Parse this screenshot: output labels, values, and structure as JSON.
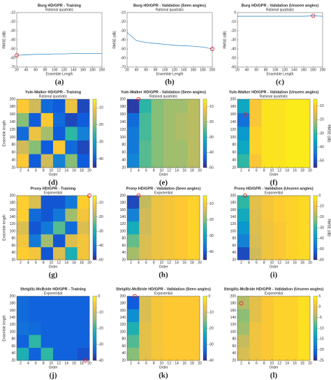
{
  "chart_data": [
    {
      "type": "line",
      "label": "(a)",
      "title": "Burg HD/GPR - Training",
      "subtitle": "Rational quadratic",
      "x_label": "Ensemble Length",
      "y_label": "RMSE (dB)",
      "color": "#3a8fd0",
      "x": [
        20,
        40,
        60,
        80,
        100,
        120,
        140,
        160,
        180,
        200
      ],
      "values": [
        -57,
        -56.5,
        -56,
        -56,
        -55.5,
        -55.5,
        -55,
        -55,
        -55,
        -55
      ],
      "xlim": [
        20,
        200
      ],
      "ylim": [
        -70,
        -10
      ],
      "xticks": [
        20,
        40,
        60,
        80,
        100,
        120,
        140,
        160,
        180,
        200
      ],
      "yticks": [
        -10,
        -20,
        -30,
        -40,
        -50,
        -60,
        -70
      ],
      "optimum": {
        "x": 20,
        "y": -57
      }
    },
    {
      "type": "line",
      "label": "(b)",
      "title": "Burg HD/GPR - Validation (Seen angles)",
      "subtitle": "Rational quadratic",
      "x_label": "Ensemble Length",
      "y_label": "RMSE (dB)",
      "color": "#3a8fd0",
      "x": [
        20,
        40,
        60,
        80,
        100,
        120,
        140,
        160,
        180,
        200
      ],
      "values": [
        -32,
        -41,
        -43,
        -44,
        -45,
        -46,
        -46.5,
        -47,
        -48,
        -50
      ],
      "xlim": [
        20,
        200
      ],
      "ylim": [
        -70,
        -10
      ],
      "xticks": [
        20,
        40,
        60,
        80,
        100,
        120,
        140,
        160,
        180,
        200
      ],
      "yticks": [
        -10,
        -20,
        -30,
        -40,
        -50,
        -60,
        -70
      ],
      "optimum": {
        "x": 200,
        "y": -50
      }
    },
    {
      "type": "line",
      "label": "(c)",
      "title": "Burg HD/GPR - Validation (Unseen angles)",
      "subtitle": "Rational quadratic",
      "x_label": "Ensemble Length",
      "y_label": "RMSE (dB)",
      "color": "#3a8fd0",
      "x": [
        20,
        40,
        60,
        80,
        100,
        120,
        140,
        160,
        180,
        200
      ],
      "values": [
        -4,
        -4,
        -4,
        -4,
        -4,
        -4,
        -4,
        -4,
        -3.5,
        -4
      ],
      "xlim": [
        20,
        200
      ],
      "ylim": [
        -60,
        0
      ],
      "xticks": [
        20,
        40,
        60,
        80,
        100,
        120,
        140,
        160,
        180,
        200
      ],
      "yticks": [
        0,
        -10,
        -20,
        -30,
        -40,
        -50,
        -60
      ],
      "optimum": {
        "x": 180,
        "y": -3.5
      }
    },
    {
      "type": "heatmap",
      "label": "(d)",
      "title": "Yule-Walker HD/GPR - Training",
      "subtitle": "Rational quadratic",
      "x_label": "Order",
      "y_label": "Ensemble length",
      "xlim": [
        1,
        20
      ],
      "ylim": [
        20,
        200
      ],
      "xticks": [
        2,
        4,
        6,
        8,
        10,
        12,
        14,
        16,
        18,
        20
      ],
      "yticks": [
        20,
        40,
        60,
        80,
        100,
        120,
        140,
        160,
        180,
        200
      ],
      "clim": [
        -45,
        -5
      ],
      "cticks": [
        -10,
        -20,
        -30,
        -40
      ],
      "z": [
        [
          -10,
          -40,
          -15,
          -35,
          -20,
          -40
        ],
        [
          -15,
          -20,
          -40,
          -10,
          -38,
          -42
        ],
        [
          -38,
          -12,
          -18,
          -40,
          -25,
          -35
        ],
        [
          -20,
          -40,
          -10,
          -38,
          -42,
          -40
        ],
        [
          -10,
          -15,
          -38,
          -40,
          -12,
          -42
        ]
      ]
    },
    {
      "type": "heatmap",
      "label": "(e)",
      "title": "Yule-Walker HD/GPR - Validation (Seen angles)",
      "subtitle": "Rational quadratic",
      "x_label": "Order",
      "y_label": "",
      "xlim": [
        1,
        20
      ],
      "ylim": [
        20,
        200
      ],
      "xticks": [
        2,
        4,
        6,
        8,
        10,
        12,
        14,
        16,
        18,
        20
      ],
      "yticks": [
        20,
        40,
        60,
        80,
        100,
        120,
        140,
        160,
        180,
        200
      ],
      "clim": [
        -50,
        -5
      ],
      "cticks": [
        -10,
        -20,
        -30,
        -40,
        -50
      ],
      "z": [
        [
          -38,
          -25,
          -22,
          -20,
          -20,
          -18
        ],
        [
          -40,
          -25,
          -22,
          -20,
          -20,
          -18
        ],
        [
          -40,
          -26,
          -22,
          -20,
          -19,
          -18
        ],
        [
          -42,
          -26,
          -22,
          -20,
          -19,
          -18
        ],
        [
          -48,
          -28,
          -22,
          -20,
          -20,
          -18
        ]
      ],
      "optimum": {
        "x": 4,
        "y": 200
      }
    },
    {
      "type": "heatmap",
      "label": "(f)",
      "title": "Yule-Walker HD/GPR - Validation (Unseen angles)",
      "subtitle": "Rational quadratic",
      "x_label": "Order",
      "y_label": "",
      "colorbar_label": "RMSE (dB)",
      "xlim": [
        1,
        20
      ],
      "ylim": [
        20,
        200
      ],
      "xticks": [
        2,
        4,
        6,
        8,
        10,
        12,
        14,
        16,
        18,
        20
      ],
      "yticks": [
        20,
        40,
        60,
        80,
        100,
        120,
        140,
        160,
        180,
        200
      ],
      "clim": [
        -55,
        -5
      ],
      "cticks": [
        -10,
        -20,
        -30,
        -40,
        -50
      ],
      "z": [
        [
          -30,
          -12,
          -8,
          -8,
          -7,
          -7
        ],
        [
          -35,
          -10,
          -8,
          -8,
          -7,
          -7
        ],
        [
          -38,
          -10,
          -8,
          -8,
          -7,
          -7
        ],
        [
          -45,
          -12,
          -8,
          -8,
          -7,
          -7
        ],
        [
          -35,
          -12,
          -8,
          -8,
          -7,
          -7
        ]
      ],
      "optimum": {
        "x": 3,
        "y": 160
      }
    },
    {
      "type": "heatmap",
      "label": "(g)",
      "title": "Prony HD/GPR - Training",
      "subtitle": "Exponential",
      "x_label": "Order",
      "y_label": "Ensemble length",
      "xlim": [
        1,
        20
      ],
      "ylim": [
        20,
        200
      ],
      "xticks": [
        2,
        4,
        6,
        8,
        10,
        12,
        14,
        16,
        18,
        20
      ],
      "yticks": [
        20,
        40,
        60,
        80,
        100,
        120,
        140,
        160,
        180,
        200
      ],
      "clim": [
        -50,
        -5
      ],
      "cticks": [
        -10,
        -20,
        -30,
        -40,
        -50
      ],
      "z": [
        [
          -10,
          -12,
          -45,
          -15,
          -30,
          -12
        ],
        [
          -12,
          -40,
          -20,
          -45,
          -15,
          -12
        ],
        [
          -15,
          -45,
          -40,
          -25,
          -42,
          -15
        ],
        [
          -10,
          -42,
          -45,
          -40,
          -20,
          -12
        ],
        [
          -10,
          -15,
          -45,
          -45,
          -40,
          -10
        ]
      ],
      "optimum": {
        "x": 20,
        "y": 200
      }
    },
    {
      "type": "heatmap",
      "label": "(h)",
      "title": "Prony HD/GPR - Validation (Seen angles)",
      "subtitle": "Exponential",
      "x_label": "Order",
      "y_label": "",
      "xlim": [
        1,
        20
      ],
      "ylim": [
        20,
        200
      ],
      "xticks": [
        2,
        4,
        6,
        8,
        10,
        12,
        14,
        16,
        18,
        20
      ],
      "yticks": [
        20,
        40,
        60,
        80,
        100,
        120,
        140,
        160,
        180,
        200
      ],
      "clim": [
        -45,
        -5
      ],
      "cticks": [
        -10,
        -20,
        -30,
        -40
      ],
      "z": [
        [
          -18,
          -14,
          -12,
          -11,
          -10,
          -9
        ],
        [
          -22,
          -14,
          -12,
          -11,
          -10,
          -9
        ],
        [
          -28,
          -15,
          -12,
          -11,
          -10,
          -9
        ],
        [
          -35,
          -15,
          -12,
          -11,
          -10,
          -9
        ],
        [
          -42,
          -16,
          -12,
          -11,
          -10,
          -9
        ]
      ],
      "optimum": {
        "x": 4,
        "y": 200
      }
    },
    {
      "type": "heatmap",
      "label": "(i)",
      "title": "Prony HD/GPR - Validation (Unseen angles)",
      "subtitle": "Exponential",
      "x_label": "Order",
      "y_label": "",
      "colorbar_label": "RMSE (dB)",
      "xlim": [
        1,
        20
      ],
      "ylim": [
        20,
        200
      ],
      "xticks": [
        2,
        4,
        6,
        8,
        10,
        12,
        14,
        16,
        18,
        20
      ],
      "yticks": [
        20,
        40,
        60,
        80,
        100,
        120,
        140,
        160,
        180,
        200
      ],
      "clim": [
        -60,
        0
      ],
      "cticks": [
        0,
        -10,
        -20,
        -30,
        -40,
        -50,
        -60
      ],
      "z": [
        [
          -55,
          -15,
          -10,
          -8,
          -6,
          -5
        ],
        [
          -45,
          -14,
          -10,
          -8,
          -6,
          -5
        ],
        [
          -40,
          -13,
          -10,
          -8,
          -6,
          -5
        ],
        [
          -35,
          -13,
          -9,
          -7,
          -6,
          -5
        ],
        [
          -30,
          -12,
          -9,
          -7,
          -6,
          -5
        ]
      ],
      "optimum": {
        "x": 3,
        "y": 200
      }
    },
    {
      "type": "heatmap",
      "label": "(j)",
      "title": "Steiglitz-McBride HD/GPR - Training",
      "subtitle": "Exponential",
      "x_label": "Order",
      "y_label": "Ensemble length",
      "xlim": [
        1,
        20
      ],
      "ylim": [
        20,
        200
      ],
      "xticks": [
        2,
        4,
        6,
        8,
        10,
        12,
        14,
        16,
        18,
        20
      ],
      "yticks": [
        20,
        40,
        60,
        80,
        100,
        120,
        140,
        160,
        180,
        200
      ],
      "clim": [
        -40,
        0
      ],
      "cticks": [
        0,
        -10,
        -20,
        -30,
        -40
      ],
      "z": [
        [
          -22,
          -34,
          -20,
          -34,
          -34,
          -36
        ],
        [
          -34,
          -20,
          -34,
          -34,
          -34,
          -34
        ],
        [
          -32,
          -33,
          -34,
          -34,
          -34,
          -34
        ],
        [
          -33,
          -34,
          -34,
          -34,
          -34,
          -34
        ],
        [
          -33,
          -34,
          -34,
          -34,
          -34,
          -34
        ]
      ],
      "optimum": {
        "x": 19,
        "y": 20
      }
    },
    {
      "type": "heatmap",
      "label": "(k)",
      "title": "Steiglitz-McBride HD/GPR - Validation (Seen angles)",
      "subtitle": "Exponential",
      "x_label": "Order",
      "y_label": "",
      "xlim": [
        1,
        20
      ],
      "ylim": [
        20,
        200
      ],
      "xticks": [
        2,
        4,
        6,
        8,
        10,
        12,
        14,
        16,
        18,
        20
      ],
      "yticks": [
        20,
        40,
        60,
        80,
        100,
        120,
        140,
        160,
        180,
        200
      ],
      "clim": [
        -40,
        0
      ],
      "cticks": [
        0,
        -10,
        -20,
        -30,
        -40
      ],
      "z": [
        [
          -15,
          -8,
          -6,
          -5,
          -5,
          -5
        ],
        [
          -18,
          -8,
          -6,
          -5,
          -5,
          -5
        ],
        [
          -22,
          -8,
          -6,
          -5,
          -5,
          -5
        ],
        [
          -28,
          -9,
          -6,
          -5,
          -5,
          -5
        ],
        [
          -35,
          -9,
          -6,
          -5,
          -5,
          -5
        ]
      ],
      "optimum": {
        "x": 3,
        "y": 200
      }
    },
    {
      "type": "heatmap",
      "label": "(l)",
      "title": "Steiglitz-McBride HD/GPR - Validation (Unseen angles)",
      "subtitle": "Exponential",
      "x_label": "Order",
      "y_label": "",
      "xlim": [
        1,
        20
      ],
      "ylim": [
        20,
        200
      ],
      "xticks": [
        2,
        4,
        6,
        8,
        10,
        12,
        14,
        16,
        18,
        20
      ],
      "yticks": [
        20,
        40,
        60,
        80,
        100,
        120,
        140,
        160,
        180,
        200
      ],
      "clim": [
        -25,
        5
      ],
      "cticks": [
        5,
        0,
        -5,
        -10,
        -15,
        -20,
        -25
      ],
      "z": [
        [
          -2,
          0,
          1,
          2,
          2,
          3
        ],
        [
          -3,
          0,
          1,
          2,
          2,
          3
        ],
        [
          -5,
          0,
          1,
          2,
          2,
          3
        ],
        [
          -6,
          -1,
          1,
          2,
          2,
          3
        ],
        [
          -4,
          -1,
          1,
          2,
          2,
          3
        ]
      ],
      "optimum": {
        "x": 2,
        "y": 180
      }
    }
  ]
}
